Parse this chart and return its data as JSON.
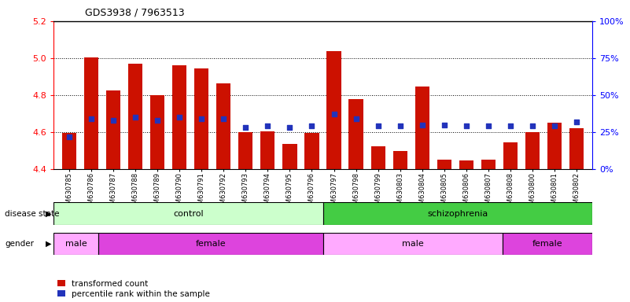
{
  "title": "GDS3938 / 7963513",
  "samples": [
    "GSM630785",
    "GSM630786",
    "GSM630787",
    "GSM630788",
    "GSM630789",
    "GSM630790",
    "GSM630791",
    "GSM630792",
    "GSM630793",
    "GSM630794",
    "GSM630795",
    "GSM630796",
    "GSM630797",
    "GSM630798",
    "GSM630799",
    "GSM630803",
    "GSM630804",
    "GSM630805",
    "GSM630806",
    "GSM630807",
    "GSM630808",
    "GSM630800",
    "GSM630801",
    "GSM630802"
  ],
  "bar_values": [
    4.595,
    5.005,
    4.825,
    4.97,
    4.8,
    4.96,
    4.945,
    4.865,
    4.6,
    4.605,
    4.535,
    4.595,
    5.04,
    4.78,
    4.525,
    4.5,
    4.845,
    4.45,
    4.445,
    4.45,
    4.545,
    4.6,
    4.65,
    4.62
  ],
  "percentile_values": [
    22,
    34,
    33,
    35,
    33,
    35,
    34,
    34,
    28,
    29,
    28,
    29,
    37,
    34,
    29,
    29,
    30,
    30,
    29,
    29,
    29,
    29,
    29,
    32
  ],
  "ylim_left": [
    4.4,
    5.2
  ],
  "ylim_right": [
    0,
    100
  ],
  "yticks_left": [
    4.4,
    4.6,
    4.8,
    5.0,
    5.2
  ],
  "yticks_right": [
    0,
    25,
    50,
    75,
    100
  ],
  "bar_color": "#cc1100",
  "dot_color": "#2233bb",
  "background_color": "#ffffff",
  "disease_state_groups": [
    {
      "label": "control",
      "start": 0,
      "end": 12,
      "color": "#ccffcc"
    },
    {
      "label": "schizophrenia",
      "start": 12,
      "end": 24,
      "color": "#44cc44"
    }
  ],
  "gender_groups": [
    {
      "label": "male",
      "start": 0,
      "end": 2,
      "color": "#ffaaff"
    },
    {
      "label": "female",
      "start": 2,
      "end": 12,
      "color": "#dd44dd"
    },
    {
      "label": "male",
      "start": 12,
      "end": 20,
      "color": "#ffaaff"
    },
    {
      "label": "female",
      "start": 20,
      "end": 24,
      "color": "#dd44dd"
    }
  ],
  "baseline": 4.4,
  "grid_lines": [
    4.6,
    4.8,
    5.0
  ],
  "bar_width": 0.65
}
